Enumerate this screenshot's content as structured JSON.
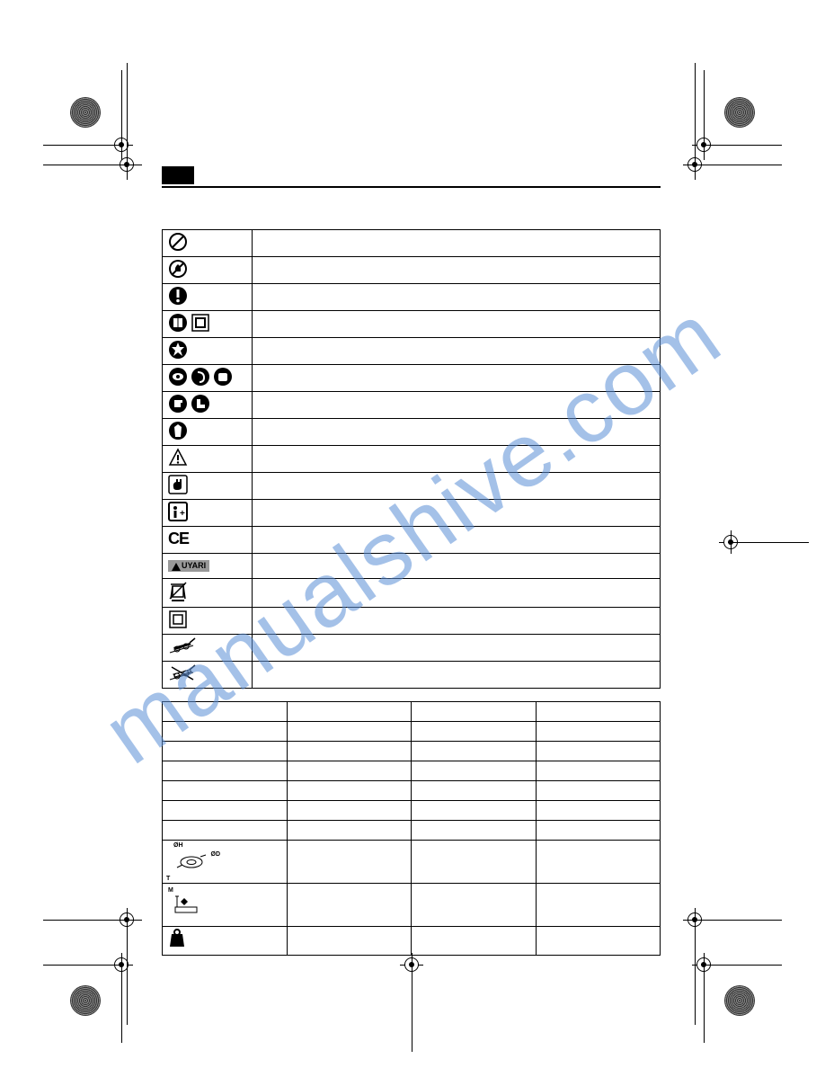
{
  "watermark": "manualshive.com",
  "header": {
    "language_code": ""
  },
  "symbols_table": {
    "rows": [
      {
        "icon": "prohibition",
        "desc": ""
      },
      {
        "icon": "no-open-flame",
        "desc": ""
      },
      {
        "icon": "exclamation-circle",
        "desc": ""
      },
      {
        "icon": "read-manual-pair",
        "desc": ""
      },
      {
        "icon": "moving-parts",
        "desc": ""
      },
      {
        "icon": "eye-ear-face-protection",
        "desc": ""
      },
      {
        "icon": "gloves-boots",
        "desc": ""
      },
      {
        "icon": "body-protection",
        "desc": ""
      },
      {
        "icon": "warning-triangle",
        "desc": ""
      },
      {
        "icon": "hand-hazard",
        "desc": ""
      },
      {
        "icon": "info-square",
        "desc": ""
      },
      {
        "icon": "ce-mark",
        "desc": ""
      },
      {
        "icon": "uyari-warning",
        "desc": "",
        "label": "UYARI"
      },
      {
        "icon": "weee-bin",
        "desc": ""
      },
      {
        "icon": "class-ii",
        "desc": ""
      },
      {
        "icon": "lawn-mower-slope-1",
        "desc": ""
      },
      {
        "icon": "lawn-mower-slope-2",
        "desc": ""
      }
    ]
  },
  "specs_table": {
    "header": [
      "",
      "",
      "",
      ""
    ],
    "rows": [
      [
        "",
        "",
        "",
        ""
      ],
      [
        "",
        "",
        "",
        ""
      ],
      [
        "",
        "",
        "",
        ""
      ],
      [
        "",
        "",
        "",
        ""
      ],
      [
        "",
        "",
        "",
        ""
      ],
      [
        "",
        "",
        "",
        ""
      ]
    ],
    "tall_rows": [
      {
        "icon": "dimensions-diagram",
        "cells": [
          "",
          "",
          ""
        ]
      },
      {
        "icon": "height-adjust",
        "cells": [
          "",
          "",
          ""
        ]
      },
      {
        "icon": "weight-icon",
        "cells": [
          "",
          "",
          ""
        ]
      }
    ],
    "diagram_labels": {
      "oh": "ØH",
      "od": "ØD",
      "t": "T",
      "m": "M"
    }
  },
  "colors": {
    "watermark": "#5b8fd6",
    "icon_gray": "#999999",
    "border": "#000000"
  }
}
